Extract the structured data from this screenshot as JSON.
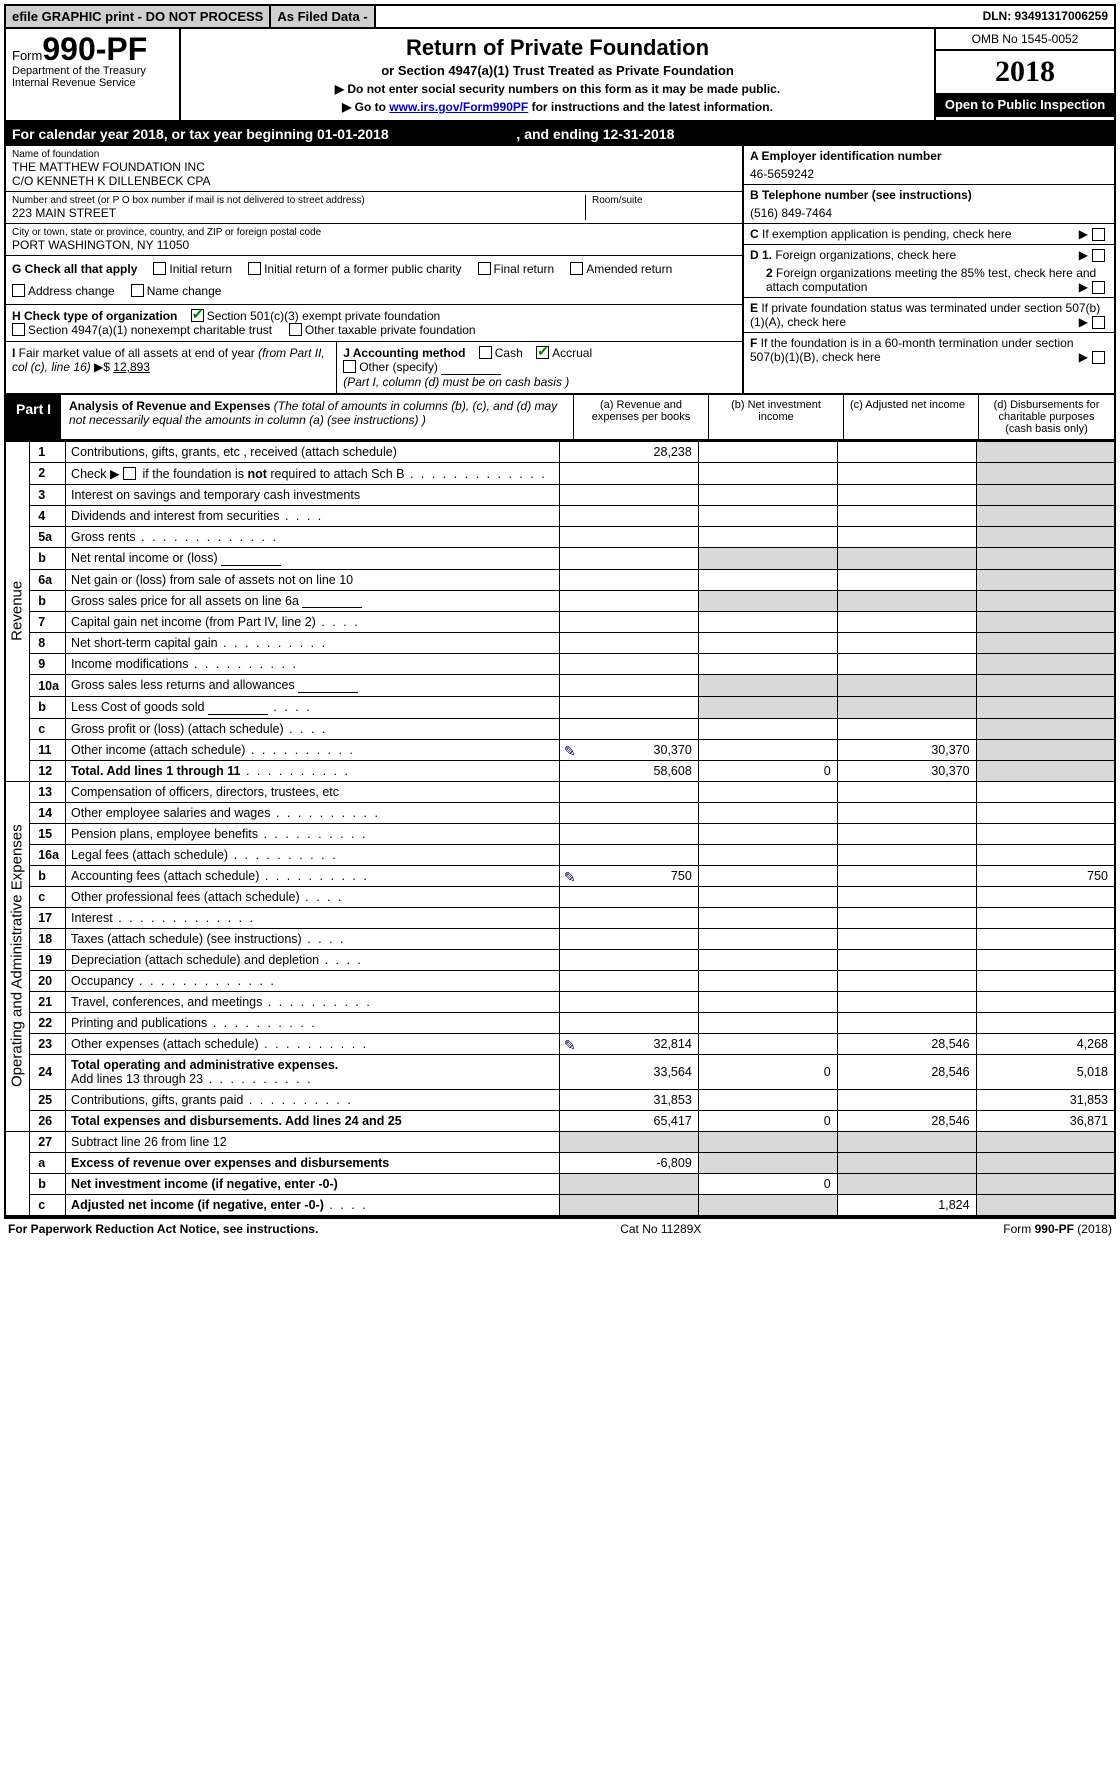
{
  "topbar": {
    "efile": "efile GRAPHIC print - DO NOT PROCESS",
    "asfiled": "As Filed Data -",
    "dln": "DLN: 93491317006259"
  },
  "header": {
    "form_prefix": "Form",
    "form_number": "990-PF",
    "dept": "Department of the Treasury",
    "irs": "Internal Revenue Service",
    "title": "Return of Private Foundation",
    "subtitle": "or Section 4947(a)(1) Trust Treated as Private Foundation",
    "instr1": "▶ Do not enter social security numbers on this form as it may be made public.",
    "instr2_pre": "▶ Go to ",
    "instr2_link": "www.irs.gov/Form990PF",
    "instr2_post": " for instructions and the latest information.",
    "omb": "OMB No 1545-0052",
    "year": "2018",
    "open": "Open to Public Inspection"
  },
  "calendar": {
    "text_pre": "For calendar year 2018, or tax year beginning ",
    "begin": "01-01-2018",
    "mid": " , and ending ",
    "end": "12-31-2018"
  },
  "info_left": {
    "name_lab": "Name of foundation",
    "name1": "THE MATTHEW FOUNDATION INC",
    "name2": "C/O KENNETH K DILLENBECK CPA",
    "addr_lab": "Number and street (or P O  box number if mail is not delivered to street address)",
    "room_lab": "Room/suite",
    "addr": "223 MAIN STREET",
    "city_lab": "City or town, state or province, country, and ZIP or foreign postal code",
    "city": "PORT WASHINGTON, NY  11050",
    "g_lab": "G Check all that apply",
    "g_opts": [
      "Initial return",
      "Initial return of a former public charity",
      "Final return",
      "Amended return",
      "Address change",
      "Name change"
    ],
    "h_lab": "H Check type of organization",
    "h_opts": [
      "Section 501(c)(3) exempt private foundation",
      "Section 4947(a)(1) nonexempt charitable trust",
      "Other taxable private foundation"
    ],
    "h_checked": 0,
    "i_lab": "I Fair market value of all assets at end of year (from Part II, col  (c), line 16) ▶$ ",
    "i_val": "12,893",
    "j_lab": "J Accounting method",
    "j_cash": "Cash",
    "j_accrual": "Accrual",
    "j_other": "Other (specify)",
    "j_note": "(Part I, column (d) must be on cash basis )"
  },
  "info_right": {
    "a_lab": "A Employer identification number",
    "a_val": "46-5659242",
    "b_lab": "B Telephone number (see instructions)",
    "b_val": "(516) 849-7464",
    "c_lab": "C If exemption application is pending, check here",
    "d1": "D 1. Foreign organizations, check here",
    "d2": "2 Foreign organizations meeting the 85% test, check here and attach computation",
    "e_lab": "E  If private foundation status was terminated under section 507(b)(1)(A), check here",
    "f_lab": "F  If the foundation is in a 60-month termination under section 507(b)(1)(B), check here"
  },
  "part1": {
    "badge": "Part I",
    "desc_title": "Analysis of Revenue and Expenses",
    "desc_note": " (The total of amounts in columns (b), (c), and (d) may not necessarily equal the amounts in column (a) (see instructions) )",
    "col_a": "(a) Revenue and expenses per books",
    "col_b": "(b) Net investment income",
    "col_c": "(c) Adjusted net income",
    "col_d": "(d) Disbursements for charitable purposes (cash basis only)",
    "revenue_label": "Revenue",
    "expenses_label": "Operating and Administrative Expenses",
    "rows": [
      {
        "n": "1",
        "d": "Contributions, gifts, grants, etc , received (attach schedule)",
        "a": "28,238"
      },
      {
        "n": "2",
        "d": "Check ▶ ☐ if the foundation is not required to attach Sch  B",
        "dots": "l"
      },
      {
        "n": "3",
        "d": "Interest on savings and temporary cash investments"
      },
      {
        "n": "4",
        "d": "Dividends and interest from securities",
        "dots": "s"
      },
      {
        "n": "5a",
        "d": "Gross rents",
        "dots": "l"
      },
      {
        "n": "b",
        "d": "Net rental income or (loss)",
        "box": true,
        "gray_bcd": true
      },
      {
        "n": "6a",
        "d": "Net gain or (loss) from sale of assets not on line 10"
      },
      {
        "n": "b",
        "d": "Gross sales price for all assets on line 6a",
        "box": true,
        "gray_bcd": true
      },
      {
        "n": "7",
        "d": "Capital gain net income (from Part IV, line 2)",
        "dots": "s"
      },
      {
        "n": "8",
        "d": "Net short-term capital gain",
        "dots": ""
      },
      {
        "n": "9",
        "d": "Income modifications",
        "dots": ""
      },
      {
        "n": "10a",
        "d": "Gross sales less returns and allowances",
        "box": true,
        "gray_bcd": true
      },
      {
        "n": "b",
        "d": "Less  Cost of goods sold",
        "dots": "s",
        "box": true,
        "gray_bcd": true
      },
      {
        "n": "c",
        "d": "Gross profit or (loss) (attach schedule)",
        "dots": "s"
      },
      {
        "n": "11",
        "d": "Other income (attach schedule)",
        "dots": "",
        "a": "30,370",
        "c": "30,370",
        "pencil": true
      },
      {
        "n": "12",
        "d": "Total. Add lines 1 through 11",
        "dots": "",
        "bold": true,
        "a": "58,608",
        "b": "0",
        "c": "30,370"
      }
    ],
    "exp_rows": [
      {
        "n": "13",
        "d": "Compensation of officers, directors, trustees, etc"
      },
      {
        "n": "14",
        "d": "Other employee salaries and wages",
        "dots": ""
      },
      {
        "n": "15",
        "d": "Pension plans, employee benefits",
        "dots": ""
      },
      {
        "n": "16a",
        "d": "Legal fees (attach schedule)",
        "dots": ""
      },
      {
        "n": "b",
        "d": "Accounting fees (attach schedule)",
        "dots": "",
        "a": "750",
        "dd": "750",
        "pencil": true
      },
      {
        "n": "c",
        "d": "Other professional fees (attach schedule)",
        "dots": "s"
      },
      {
        "n": "17",
        "d": "Interest",
        "dots": "l"
      },
      {
        "n": "18",
        "d": "Taxes (attach schedule) (see instructions)",
        "dots": "s"
      },
      {
        "n": "19",
        "d": "Depreciation (attach schedule) and depletion",
        "dots": "s"
      },
      {
        "n": "20",
        "d": "Occupancy",
        "dots": "l"
      },
      {
        "n": "21",
        "d": "Travel, conferences, and meetings",
        "dots": ""
      },
      {
        "n": "22",
        "d": "Printing and publications",
        "dots": ""
      },
      {
        "n": "23",
        "d": "Other expenses (attach schedule)",
        "dots": "",
        "a": "32,814",
        "c": "28,546",
        "dd": "4,268",
        "pencil": true
      },
      {
        "n": "24",
        "d": "Total operating and administrative expenses.",
        "bold": true,
        "twoLine": "Add lines 13 through 23",
        "dots": "",
        "a": "33,564",
        "b": "0",
        "c": "28,546",
        "dd": "5,018"
      },
      {
        "n": "25",
        "d": "Contributions, gifts, grants paid",
        "dots": "",
        "a": "31,853",
        "dd": "31,853"
      },
      {
        "n": "26",
        "d": "Total expenses and disbursements. Add lines 24 and 25",
        "bold": true,
        "a": "65,417",
        "b": "0",
        "c": "28,546",
        "dd": "36,871"
      }
    ],
    "sum_rows": [
      {
        "n": "27",
        "d": "Subtract line 26 from line 12"
      },
      {
        "n": "a",
        "d": "Excess of revenue over expenses and disbursements",
        "bold": true,
        "a": "-6,809"
      },
      {
        "n": "b",
        "d": "Net investment income (if negative, enter -0-)",
        "bold": true,
        "b": "0"
      },
      {
        "n": "c",
        "d": "Adjusted net income (if negative, enter -0-)",
        "bold": true,
        "dots": "s",
        "c": "1,824"
      }
    ]
  },
  "footer": {
    "left": "For Paperwork Reduction Act Notice, see instructions.",
    "mid": "Cat  No  11289X",
    "right": "Form 990-PF (2018)"
  },
  "colors": {
    "topbar_gray": "#cfcfcf",
    "cell_gray": "#d9d9d9",
    "check_green": "#008000",
    "link_blue": "#0000cc"
  }
}
